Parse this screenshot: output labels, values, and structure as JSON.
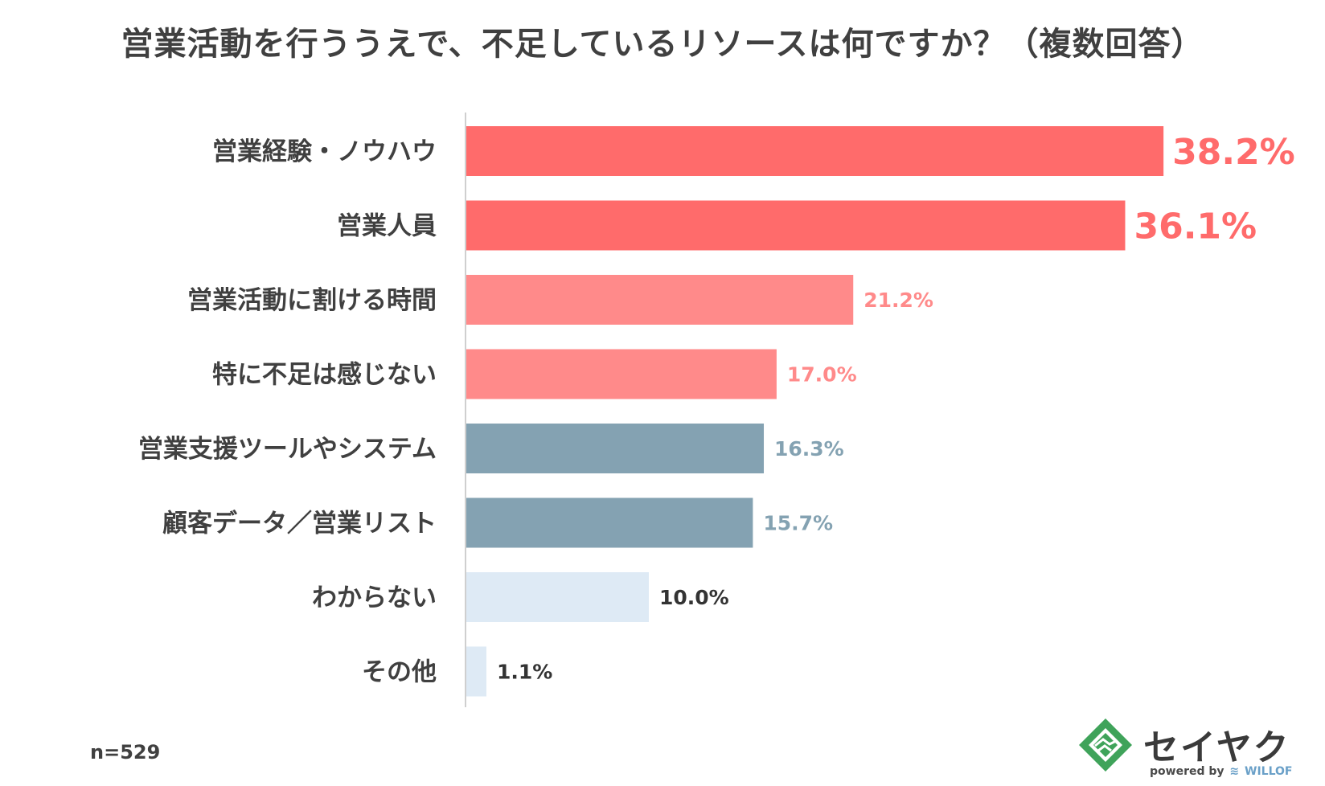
{
  "chart_data": {
    "type": "bar",
    "orientation": "horizontal",
    "title": "営業活動を行ううえで、不足しているリソースは何ですか？（複数回答）",
    "categories": [
      "営業経験・ノウハウ",
      "営業人員",
      "営業活動に割ける時間",
      "特に不足は感じない",
      "営業支援ツールやシステム",
      "顧客データ／営業リスト",
      "わからない",
      "その他"
    ],
    "values": [
      38.2,
      36.1,
      21.2,
      17.0,
      16.3,
      15.7,
      10.0,
      1.1
    ],
    "value_labels": [
      "38.2%",
      "36.1%",
      "21.2%",
      "17.0%",
      "16.3%",
      "15.7%",
      "10.0%",
      "1.1%"
    ],
    "bar_colors": [
      "#ff6b6b",
      "#ff6b6b",
      "#ff8a8a",
      "#ff8a8a",
      "#84a2b2",
      "#84a2b2",
      "#deeaf5",
      "#deeaf5"
    ],
    "label_colors": [
      "#ff6b6b",
      "#ff6b6b",
      "#ff8a8a",
      "#ff8a8a",
      "#84a2b2",
      "#84a2b2",
      "#333333",
      "#333333"
    ],
    "xlim": [
      0,
      40
    ],
    "grid": false,
    "legend": "none",
    "sample_size": "n=529"
  },
  "logo": {
    "name": "セイヤク",
    "powered_by": "powered by",
    "brand": "WILLOF"
  }
}
